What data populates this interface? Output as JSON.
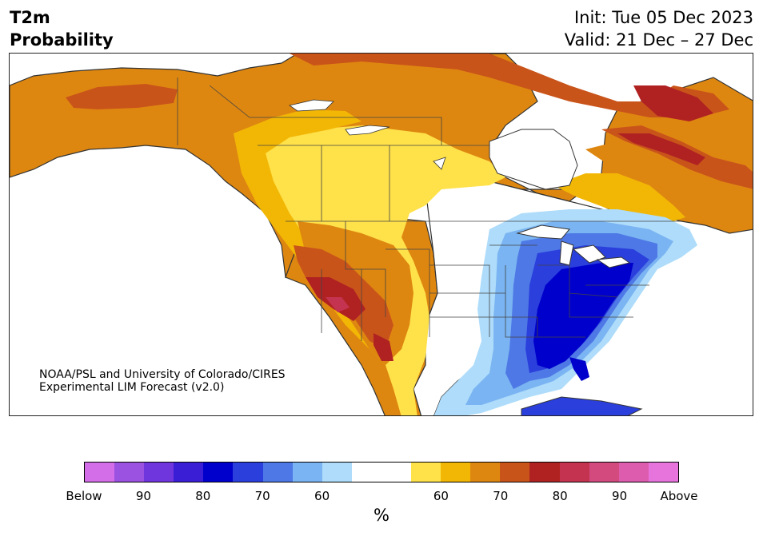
{
  "header": {
    "title_line1": "T2m",
    "title_line2": "Probability",
    "init": "Init: Tue 05 Dec 2023",
    "valid": "Valid: 21 Dec – 27 Dec"
  },
  "credit": {
    "line1": "NOAA/PSL and University of Colorado/CIRES",
    "line2": "Experimental LIM Forecast (v2.0)"
  },
  "colorbar": {
    "colors": [
      "#d46ee8",
      "#9b52e0",
      "#6e36dc",
      "#3a1ed6",
      "#0000cc",
      "#2a3fdc",
      "#4e78e6",
      "#7ab4f2",
      "#aedcfa",
      "#ffffff",
      "#ffffff",
      "#ffe14a",
      "#f2b705",
      "#de8710",
      "#c9541a",
      "#b02222",
      "#c43450",
      "#d24a7e",
      "#de5cae",
      "#e674dc"
    ],
    "tick_labels": [
      "Below",
      "90",
      "80",
      "70",
      "60",
      "60",
      "70",
      "80",
      "90",
      "Above"
    ],
    "unit": "%"
  },
  "map": {
    "ocean_color": "#ffffff",
    "coast_color": "#333333",
    "warm_colors": {
      "p55": "#ffe14a",
      "p60": "#f2b705",
      "p65": "#de8710",
      "p70": "#c9541a",
      "p75": "#b02222",
      "p80": "#c43450",
      "p85": "#d24a7e"
    },
    "cold_colors": {
      "p55": "#aedcfa",
      "p60": "#7ab4f2",
      "p65": "#4e78e6",
      "p70": "#2a3fdc",
      "p75": "#0000cc"
    }
  }
}
